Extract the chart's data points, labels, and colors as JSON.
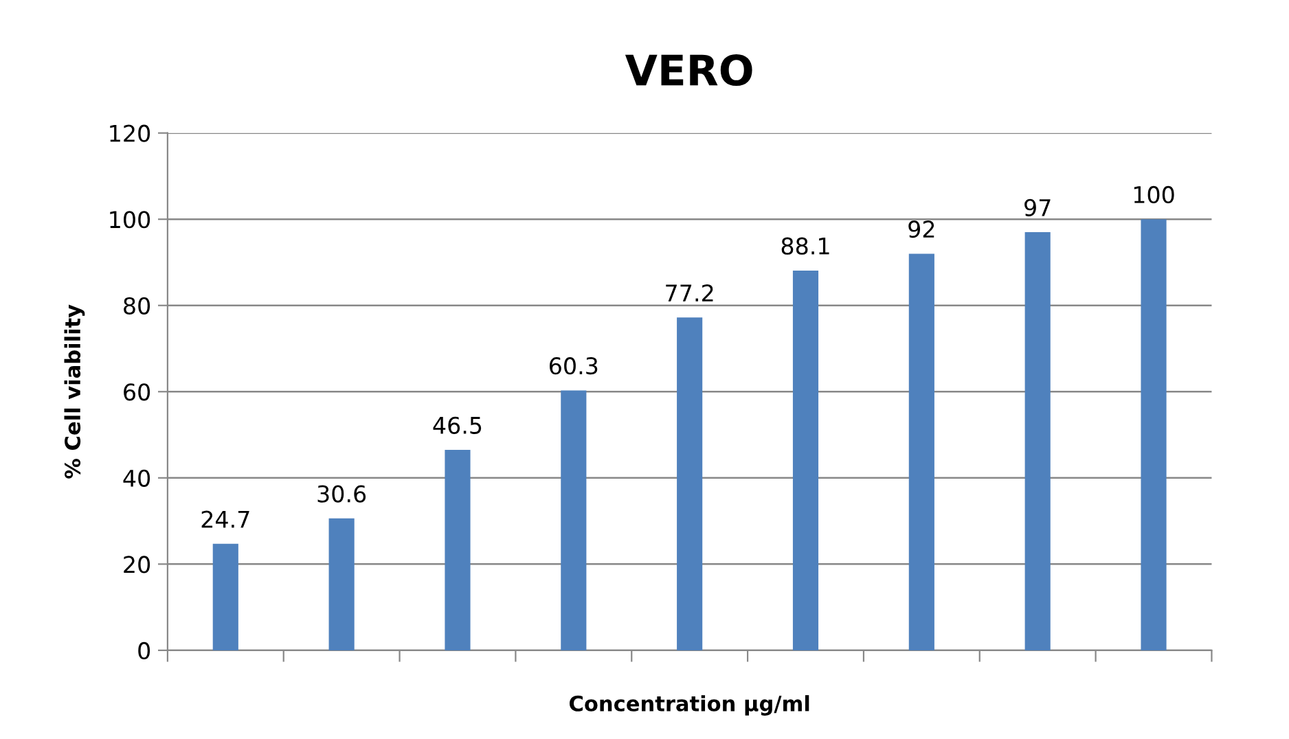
{
  "chart_data": {
    "type": "bar",
    "title": "VERO",
    "xlabel": "Concentration µg/ml",
    "ylabel": "% Cell viability",
    "categories": [
      null,
      null,
      null,
      null,
      null,
      null,
      null,
      null,
      null
    ],
    "values": [
      24.7,
      30.6,
      46.5,
      60.3,
      77.2,
      88.1,
      92,
      97,
      100
    ],
    "color": "#4f81bd",
    "data_labels": true,
    "ylim": [
      0,
      120
    ],
    "yticks": [
      0,
      20,
      40,
      60,
      80,
      100,
      120
    ],
    "grid": "y"
  }
}
